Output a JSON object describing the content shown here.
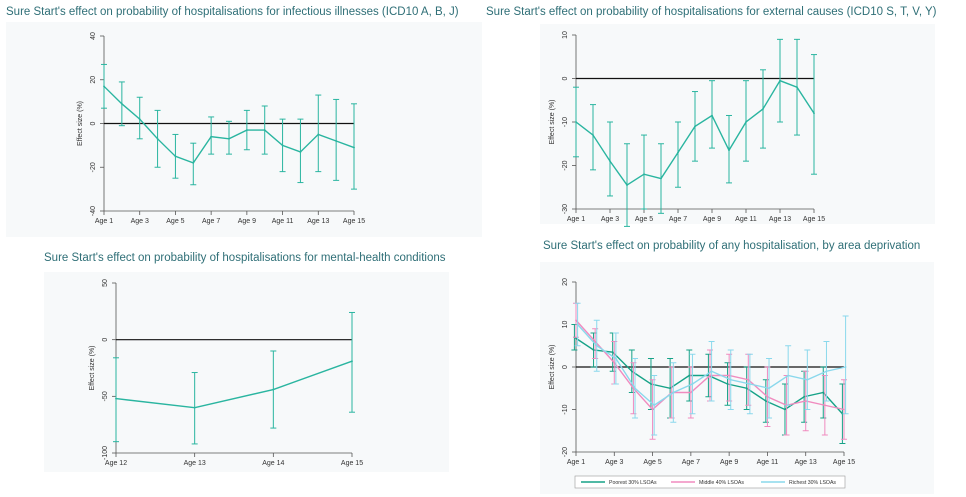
{
  "chart_data": [
    {
      "type": "line",
      "title": "Sure Start's effect on probability of hospitalisations for infectious illnesses (ICD10 A, B, J)",
      "ylabel": "Effect size (%)",
      "xlabel": "",
      "x_ticks": [
        "Age 1",
        "Age 3",
        "Age 5",
        "Age 7",
        "Age 9",
        "Age 11",
        "Age 13",
        "Age 15"
      ],
      "ylim": [
        -40,
        40
      ],
      "y_ticks": [
        40,
        20,
        0,
        -20,
        -40
      ],
      "x": [
        1,
        2,
        3,
        4,
        5,
        6,
        7,
        8,
        9,
        10,
        11,
        12,
        13,
        14,
        15
      ],
      "series": [
        {
          "color": "#2ab5a0",
          "values": [
            17,
            9,
            2,
            -7,
            -15,
            -18,
            -6,
            -7,
            -3,
            -3,
            -10,
            -13,
            -5,
            -8,
            -11
          ],
          "ci_low": [
            7,
            -1,
            -7,
            -20,
            -25,
            -28,
            -14,
            -14,
            -12,
            -14,
            -22,
            -27,
            -22,
            -26,
            -30
          ],
          "ci_high": [
            27,
            19,
            12,
            6,
            -5,
            -9,
            3,
            1,
            6,
            8,
            2,
            2,
            13,
            11,
            9
          ]
        }
      ]
    },
    {
      "type": "line",
      "title": "Sure Start's effect on probability of hospitalisations for external causes (ICD10 S, T, V, Y)",
      "ylabel": "Effect size (%)",
      "xlabel": "",
      "x_ticks": [
        "Age 1",
        "Age 3",
        "Age 5",
        "Age 7",
        "Age 9",
        "Age 11",
        "Age 13",
        "Age 15"
      ],
      "ylim": [
        -30,
        10
      ],
      "y_ticks": [
        10,
        0,
        -10,
        -20,
        -30
      ],
      "x": [
        1,
        2,
        3,
        4,
        5,
        6,
        7,
        8,
        9,
        10,
        11,
        12,
        13,
        14,
        15
      ],
      "series": [
        {
          "color": "#2ab5a0",
          "values": [
            -10,
            -13,
            -19,
            -24.5,
            -22,
            -23,
            -17,
            -11,
            -8.5,
            -16.5,
            -10,
            -7,
            -0.5,
            -2,
            -8
          ],
          "ci_low": [
            -18,
            -21,
            -27,
            -34,
            -30,
            -31,
            -25,
            -19,
            -16,
            -24,
            -19,
            -16,
            -10,
            -13,
            -22
          ],
          "ci_high": [
            -2,
            -6,
            -10,
            -15,
            -13,
            -15,
            -10,
            -3,
            -0.5,
            -8.5,
            -0.5,
            2,
            9,
            9,
            5.5
          ]
        }
      ]
    },
    {
      "type": "line",
      "title": "Sure Start's effect on probability of hospitalisations for mental-health conditions",
      "ylabel": "Effect size (%)",
      "xlabel": "",
      "x_ticks": [
        "Age 12",
        "Age 13",
        "Age 14",
        "Age 15"
      ],
      "ylim": [
        -100,
        50
      ],
      "y_ticks": [
        50,
        0,
        -50,
        -100
      ],
      "x": [
        12,
        13,
        14,
        15
      ],
      "series": [
        {
          "color": "#2ab5a0",
          "values": [
            -52,
            -60,
            -44,
            -19
          ],
          "ci_low": [
            -90,
            -92,
            -78,
            -64
          ],
          "ci_high": [
            -16,
            -29,
            -10,
            24
          ]
        }
      ]
    },
    {
      "type": "line",
      "title": "Sure Start's effect on probability of any hospitalisation, by area deprivation",
      "ylabel": "Effect size (%)",
      "xlabel": "",
      "x_ticks": [
        "Age 1",
        "Age 3",
        "Age 5",
        "Age 7",
        "Age 9",
        "Age 11",
        "Age 13",
        "Age 15"
      ],
      "ylim": [
        -20,
        20
      ],
      "y_ticks": [
        20,
        10,
        0,
        -10,
        -20
      ],
      "x": [
        1,
        2,
        3,
        4,
        5,
        6,
        7,
        8,
        9,
        10,
        11,
        12,
        13,
        14,
        15
      ],
      "legend_position": "bottom",
      "series": [
        {
          "name": "Poorest 30% LSOAs",
          "color": "#16a287",
          "values": [
            7,
            4,
            3.5,
            -1,
            -4,
            -5,
            -2,
            -2,
            -4,
            -5,
            -8,
            -10,
            -7,
            -6,
            -11
          ],
          "ci_low": [
            4,
            0,
            -1,
            -6,
            -10,
            -12,
            -8,
            -7,
            -9,
            -10,
            -13,
            -16,
            -13,
            -12,
            -18
          ],
          "ci_high": [
            10,
            8,
            8,
            4,
            2,
            2,
            4,
            3,
            1,
            0,
            -3,
            -4,
            -1,
            0,
            -4
          ]
        },
        {
          "name": "Middle 40% LSOAs",
          "color": "#f08bbf",
          "values": [
            11,
            6,
            1,
            -5,
            -10,
            -6,
            -6,
            -2,
            -2,
            -3,
            -7,
            -9,
            -8,
            -9,
            -10
          ],
          "ci_low": [
            7,
            2,
            -4,
            -11,
            -17,
            -12,
            -12,
            -8,
            -8,
            -9,
            -14,
            -16,
            -15,
            -16,
            -17
          ],
          "ci_high": [
            15,
            9,
            6,
            1,
            -3,
            0,
            0,
            4,
            3,
            3,
            0,
            -2,
            -1,
            -2,
            -3
          ]
        },
        {
          "name": "Richest 30% LSOAs",
          "color": "#8ad8ec",
          "values": [
            10,
            5,
            2,
            -5,
            -9,
            -6,
            -4,
            -1,
            -3,
            -4,
            -5,
            -2,
            -3,
            -1,
            0
          ],
          "ci_low": [
            5,
            -1,
            -4,
            -12,
            -16,
            -13,
            -11,
            -8,
            -10,
            -11,
            -12,
            -9,
            -10,
            -8,
            -11
          ],
          "ci_high": [
            15,
            11,
            8,
            2,
            -2,
            1,
            3,
            6,
            4,
            3,
            2,
            5,
            4,
            6,
            12
          ]
        }
      ]
    }
  ]
}
